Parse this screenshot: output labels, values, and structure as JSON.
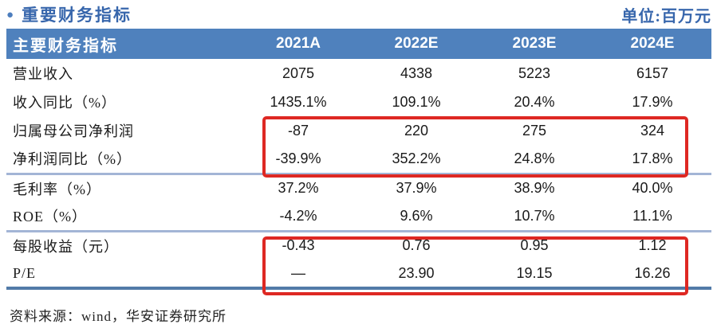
{
  "title": {
    "bullet": "●",
    "text": "重要财务指标",
    "unit_label": "单位:百万元"
  },
  "table": {
    "header": [
      "主要财务指标",
      "2021A",
      "2022E",
      "2023E",
      "2024E"
    ],
    "rows": [
      {
        "label": "营业收入",
        "values": [
          "2075",
          "4338",
          "5223",
          "6157"
        ]
      },
      {
        "label": "收入同比（%）",
        "values": [
          "1435.1%",
          "109.1%",
          "20.4%",
          "17.9%"
        ]
      },
      {
        "label": "归属母公司净利润",
        "values": [
          "-87",
          "220",
          "275",
          "324"
        ]
      },
      {
        "label": "净利润同比（%）",
        "values": [
          "-39.9%",
          "352.2%",
          "24.8%",
          "17.8%"
        ]
      },
      {
        "label": "毛利率（%）",
        "values": [
          "37.2%",
          "37.9%",
          "38.9%",
          "40.0%"
        ]
      },
      {
        "label": "ROE（%）",
        "values": [
          "-4.2%",
          "9.6%",
          "10.7%",
          "11.1%"
        ]
      },
      {
        "label": "每股收益（元）",
        "values": [
          "-0.43",
          "0.76",
          "0.95",
          "1.12"
        ]
      },
      {
        "label": "P/E",
        "values": [
          "—",
          "23.90",
          "19.15",
          "16.26"
        ]
      }
    ],
    "section_break_after": [
      3,
      5
    ]
  },
  "footer": {
    "source": "资料来源：wind，华安证券研究所"
  },
  "colors": {
    "header_bg": "#4F81BD",
    "title_blue": "#3766AC",
    "bullet_blue": "#4D7EBE",
    "separator": "#A3B5D6",
    "bottom_border": "#527BA8",
    "highlight": "#DE2823",
    "text": "#1A1A1A"
  }
}
